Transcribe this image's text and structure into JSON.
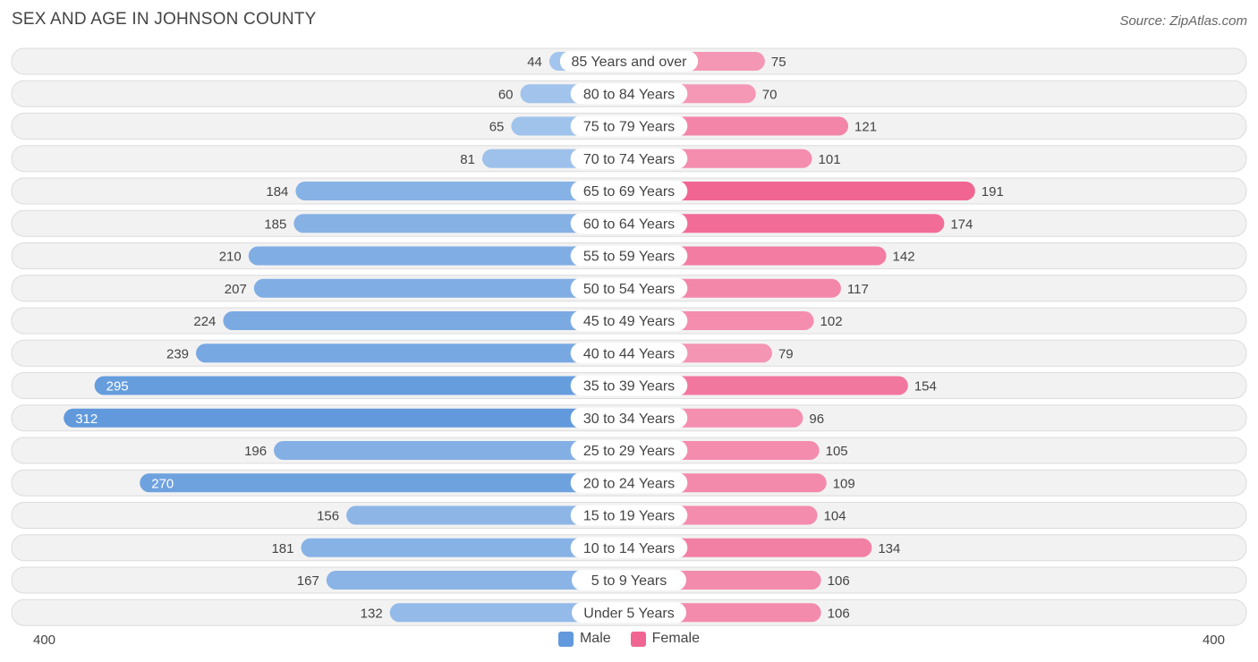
{
  "title": "SEX AND AGE IN JOHNSON COUNTY",
  "source": "Source: ZipAtlas.com",
  "colors": {
    "male_light": "#a8c8ee",
    "male_dark": "#6199dc",
    "female_light": "#f6a9c2",
    "female_dark": "#f06591",
    "row_bg": "#f2f2f2",
    "row_border": "#dcdcdc"
  },
  "legend": {
    "male": "Male",
    "female": "Female"
  },
  "axis": {
    "left_label": "400",
    "right_label": "400"
  },
  "chart_data": {
    "type": "bar",
    "orientation": "horizontal-diverging",
    "xlim": [
      -400,
      400
    ],
    "categories": [
      "85 Years and over",
      "80 to 84 Years",
      "75 to 79 Years",
      "70 to 74 Years",
      "65 to 69 Years",
      "60 to 64 Years",
      "55 to 59 Years",
      "50 to 54 Years",
      "45 to 49 Years",
      "40 to 44 Years",
      "35 to 39 Years",
      "30 to 34 Years",
      "25 to 29 Years",
      "20 to 24 Years",
      "15 to 19 Years",
      "10 to 14 Years",
      "5 to 9 Years",
      "Under 5 Years"
    ],
    "series": [
      {
        "name": "Male",
        "values": [
          44,
          60,
          65,
          81,
          184,
          185,
          210,
          207,
          224,
          239,
          295,
          312,
          196,
          270,
          156,
          181,
          167,
          132
        ]
      },
      {
        "name": "Female",
        "values": [
          75,
          70,
          121,
          101,
          191,
          174,
          142,
          117,
          102,
          79,
          154,
          96,
          105,
          109,
          104,
          134,
          106,
          106
        ]
      }
    ],
    "legend_position": "bottom-center"
  }
}
